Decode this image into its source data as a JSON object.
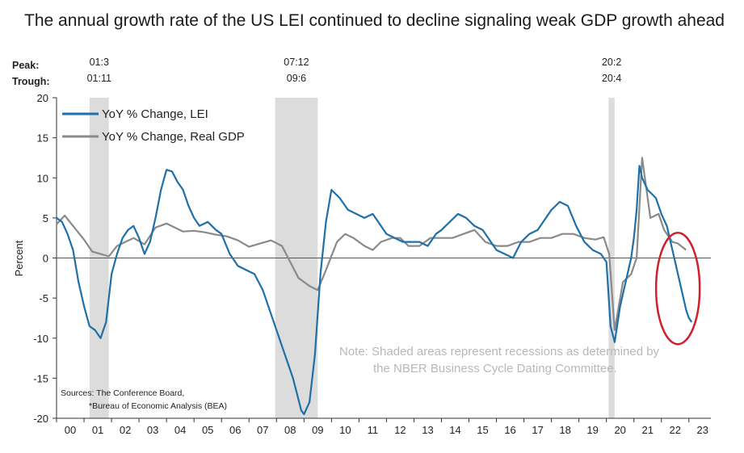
{
  "title": "The annual growth rate of the US LEI continued to decline signaling weak GDP growth ahead",
  "annotations": {
    "peak_label": "Peak:",
    "trough_label": "Trough:",
    "recessions": [
      {
        "peak": "01:3",
        "trough": "01:11",
        "start": 2001.2,
        "end": 2001.9
      },
      {
        "peak": "07:12",
        "trough": "09:6",
        "start": 2007.95,
        "end": 2009.5
      },
      {
        "peak": "20:2",
        "trough": "20:4",
        "start": 2020.08,
        "end": 2020.3
      }
    ],
    "note_line1": "Note: Shaded areas represent recessions as determined by",
    "note_line2": "the NBER Business Cycle Dating Committee.",
    "sources_line1": "Sources: The Conference Board,",
    "sources_line2": "*Bureau of Economic Analysis (BEA)"
  },
  "colors": {
    "lei": "#1f6fa8",
    "gdp": "#8a8a8a",
    "recession": "#dcdcdc",
    "highlight_circle": "#d0202a",
    "zero_line": "#555555"
  },
  "chart_data": {
    "type": "line",
    "title": "The annual growth rate of the US LEI continued to decline signaling weak GDP growth ahead",
    "xlabel": "",
    "ylabel": "Percent",
    "xlim": [
      2000,
      2023.8
    ],
    "ylim": [
      -20,
      20
    ],
    "yticks": [
      20,
      15,
      10,
      5,
      0,
      -5,
      -10,
      -15,
      -20
    ],
    "xtick_labels": [
      "00",
      "01",
      "02",
      "03",
      "04",
      "05",
      "06",
      "07",
      "08",
      "09",
      "10",
      "11",
      "12",
      "13",
      "14",
      "15",
      "16",
      "17",
      "18",
      "19",
      "20",
      "21",
      "22",
      "23"
    ],
    "grid": false,
    "legend": "top-left",
    "highlight": "red ellipse around 2022–2023 decline",
    "series": [
      {
        "name": "YoY % Change, LEI",
        "x": [
          2000.0,
          2000.2,
          2000.4,
          2000.6,
          2000.8,
          2001.0,
          2001.2,
          2001.4,
          2001.6,
          2001.8,
          2001.9,
          2002.0,
          2002.2,
          2002.4,
          2002.6,
          2002.8,
          2003.0,
          2003.2,
          2003.4,
          2003.6,
          2003.8,
          2004.0,
          2004.2,
          2004.4,
          2004.6,
          2004.8,
          2005.0,
          2005.2,
          2005.5,
          2005.8,
          2006.0,
          2006.3,
          2006.6,
          2006.9,
          2007.2,
          2007.5,
          2007.8,
          2008.0,
          2008.3,
          2008.6,
          2008.9,
          2009.0,
          2009.2,
          2009.4,
          2009.6,
          2009.8,
          2010.0,
          2010.3,
          2010.6,
          2010.9,
          2011.2,
          2011.5,
          2011.8,
          2012.0,
          2012.3,
          2012.6,
          2012.9,
          2013.2,
          2013.5,
          2013.8,
          2014.0,
          2014.3,
          2014.6,
          2014.9,
          2015.2,
          2015.5,
          2015.8,
          2016.0,
          2016.3,
          2016.6,
          2016.9,
          2017.2,
          2017.5,
          2017.8,
          2018.0,
          2018.3,
          2018.6,
          2018.9,
          2019.2,
          2019.5,
          2019.8,
          2020.0,
          2020.15,
          2020.3,
          2020.5,
          2020.7,
          2020.9,
          2021.0,
          2021.1,
          2021.2,
          2021.3,
          2021.5,
          2021.8,
          2022.0,
          2022.2,
          2022.4,
          2022.6,
          2022.8,
          2022.9,
          2023.0,
          2023.1
        ],
        "values": [
          5.0,
          4.5,
          3.0,
          1.0,
          -3.0,
          -6.0,
          -8.5,
          -9.0,
          -10.0,
          -8.0,
          -5.0,
          -2.0,
          0.5,
          2.5,
          3.5,
          4.0,
          2.5,
          0.5,
          2.0,
          5.0,
          8.5,
          11.0,
          10.8,
          9.5,
          8.5,
          6.5,
          5.0,
          4.0,
          4.5,
          3.5,
          3.0,
          0.5,
          -1.0,
          -1.5,
          -2.0,
          -4.0,
          -7.0,
          -9.0,
          -12.0,
          -15.0,
          -19.0,
          -19.5,
          -18.0,
          -12.0,
          -2.0,
          4.5,
          8.5,
          7.5,
          6.0,
          5.5,
          5.0,
          5.5,
          4.0,
          3.0,
          2.5,
          2.0,
          2.0,
          2.0,
          1.5,
          3.0,
          3.5,
          4.5,
          5.5,
          5.0,
          4.0,
          3.5,
          2.0,
          1.0,
          0.5,
          0.0,
          2.0,
          3.0,
          3.5,
          5.0,
          6.0,
          7.0,
          6.5,
          4.0,
          2.0,
          1.0,
          0.5,
          -0.5,
          -8.5,
          -10.5,
          -6.0,
          -3.0,
          0.0,
          2.5,
          6.0,
          11.5,
          10.0,
          8.5,
          7.5,
          5.5,
          4.0,
          1.0,
          -2.0,
          -5.0,
          -6.5,
          -7.5,
          -8.0
        ]
      },
      {
        "name": "YoY % Change, Real GDP",
        "x": [
          2000.0,
          2000.3,
          2000.6,
          2001.0,
          2001.3,
          2001.6,
          2001.9,
          2002.2,
          2002.5,
          2002.8,
          2003.2,
          2003.6,
          2004.0,
          2004.3,
          2004.6,
          2005.0,
          2005.4,
          2005.8,
          2006.2,
          2006.6,
          2007.0,
          2007.4,
          2007.8,
          2008.2,
          2008.5,
          2008.8,
          2009.2,
          2009.5,
          2009.8,
          2010.2,
          2010.5,
          2010.8,
          2011.2,
          2011.5,
          2011.8,
          2012.2,
          2012.5,
          2012.8,
          2013.2,
          2013.6,
          2014.0,
          2014.4,
          2014.8,
          2015.2,
          2015.6,
          2016.0,
          2016.4,
          2016.8,
          2017.2,
          2017.6,
          2018.0,
          2018.4,
          2018.8,
          2019.2,
          2019.6,
          2019.9,
          2020.1,
          2020.3,
          2020.6,
          2020.9,
          2021.1,
          2021.3,
          2021.6,
          2021.9,
          2022.1,
          2022.4,
          2022.6,
          2022.9
        ],
        "values": [
          4.2,
          5.3,
          4.0,
          2.3,
          0.8,
          0.5,
          0.2,
          1.5,
          2.0,
          2.5,
          1.7,
          3.8,
          4.3,
          3.8,
          3.3,
          3.4,
          3.2,
          2.9,
          2.7,
          2.2,
          1.4,
          1.8,
          2.2,
          1.5,
          -0.5,
          -2.5,
          -3.5,
          -4.0,
          -1.5,
          2.0,
          3.0,
          2.5,
          1.5,
          1.0,
          2.0,
          2.5,
          2.5,
          1.5,
          1.5,
          2.5,
          2.5,
          2.5,
          3.0,
          3.5,
          2.0,
          1.5,
          1.5,
          2.0,
          2.0,
          2.5,
          2.5,
          3.0,
          3.0,
          2.5,
          2.3,
          2.6,
          0.5,
          -9.0,
          -3.0,
          -2.0,
          0.0,
          12.5,
          5.0,
          5.5,
          3.5,
          2.0,
          1.8,
          1.0
        ]
      }
    ]
  }
}
